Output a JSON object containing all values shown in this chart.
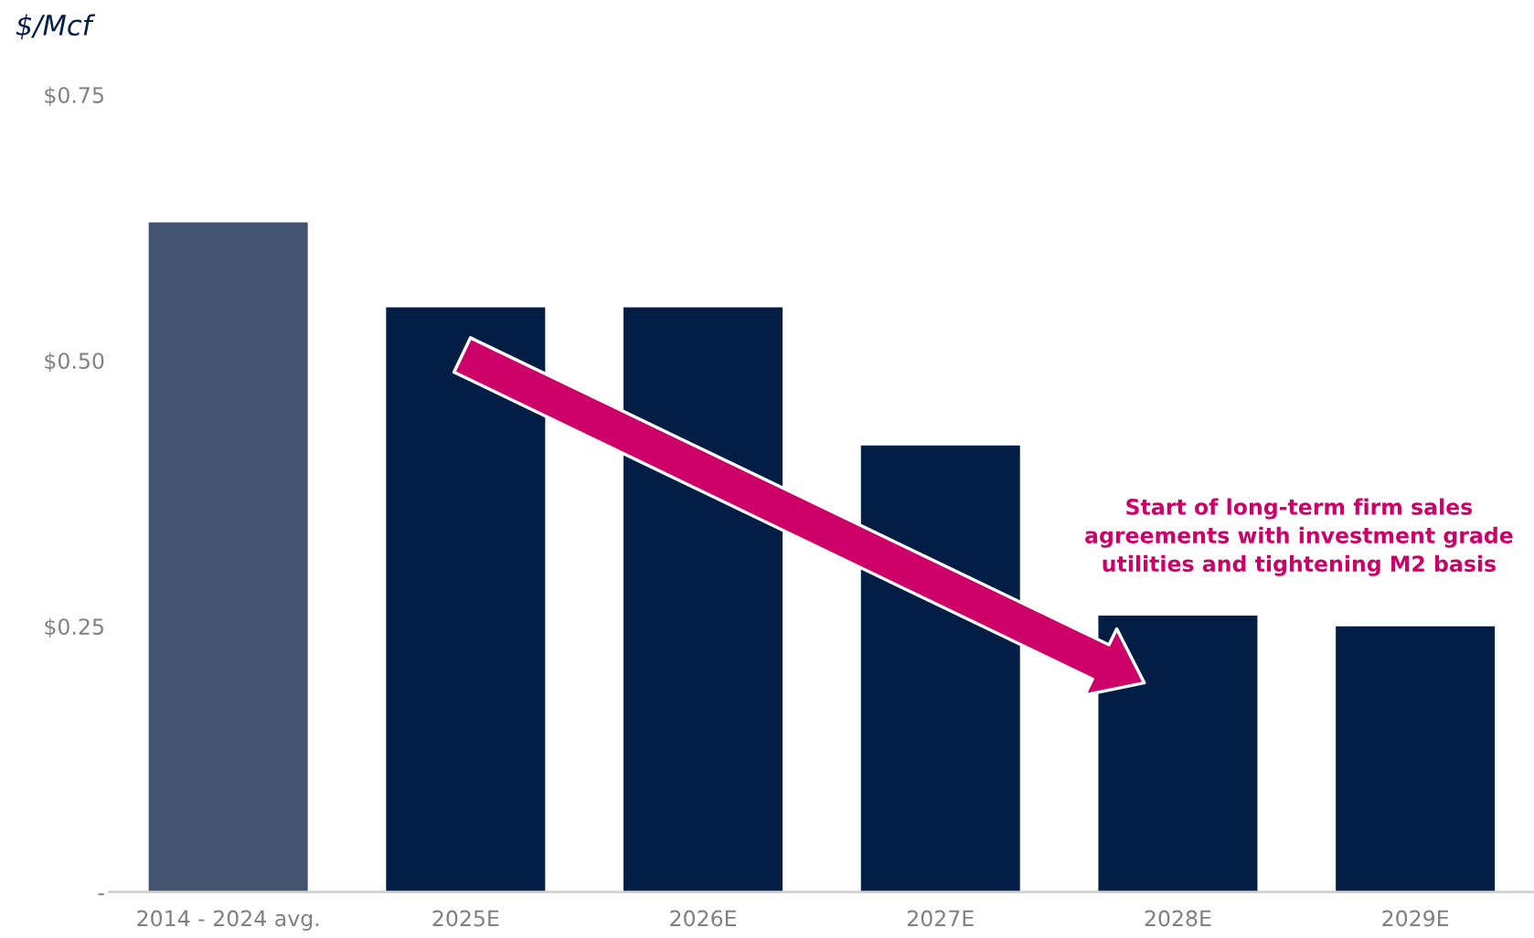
{
  "chart_data": {
    "type": "bar",
    "ylabel": "$/Mcf",
    "categories": [
      "2014 - 2024 avg.",
      "2025E",
      "2026E",
      "2027E",
      "2028E",
      "2029E"
    ],
    "values": [
      0.63,
      0.55,
      0.55,
      0.42,
      0.26,
      0.25
    ],
    "colors": [
      "#42546f",
      "#031e45",
      "#031e45",
      "#031e45",
      "#031e45",
      "#031e45"
    ],
    "ylim": [
      0,
      0.75
    ],
    "yticks": [
      {
        "value": 0,
        "label": "-"
      },
      {
        "value": 0.25,
        "label": "$0.25"
      },
      {
        "value": 0.5,
        "label": "$0.50"
      },
      {
        "value": 0.75,
        "label": "$0.75"
      }
    ],
    "grid": false,
    "legend": false,
    "annotations": [
      "Start of long-term firm sales\nagreements with investment grade\nutilities and tightening M2 basis"
    ]
  }
}
